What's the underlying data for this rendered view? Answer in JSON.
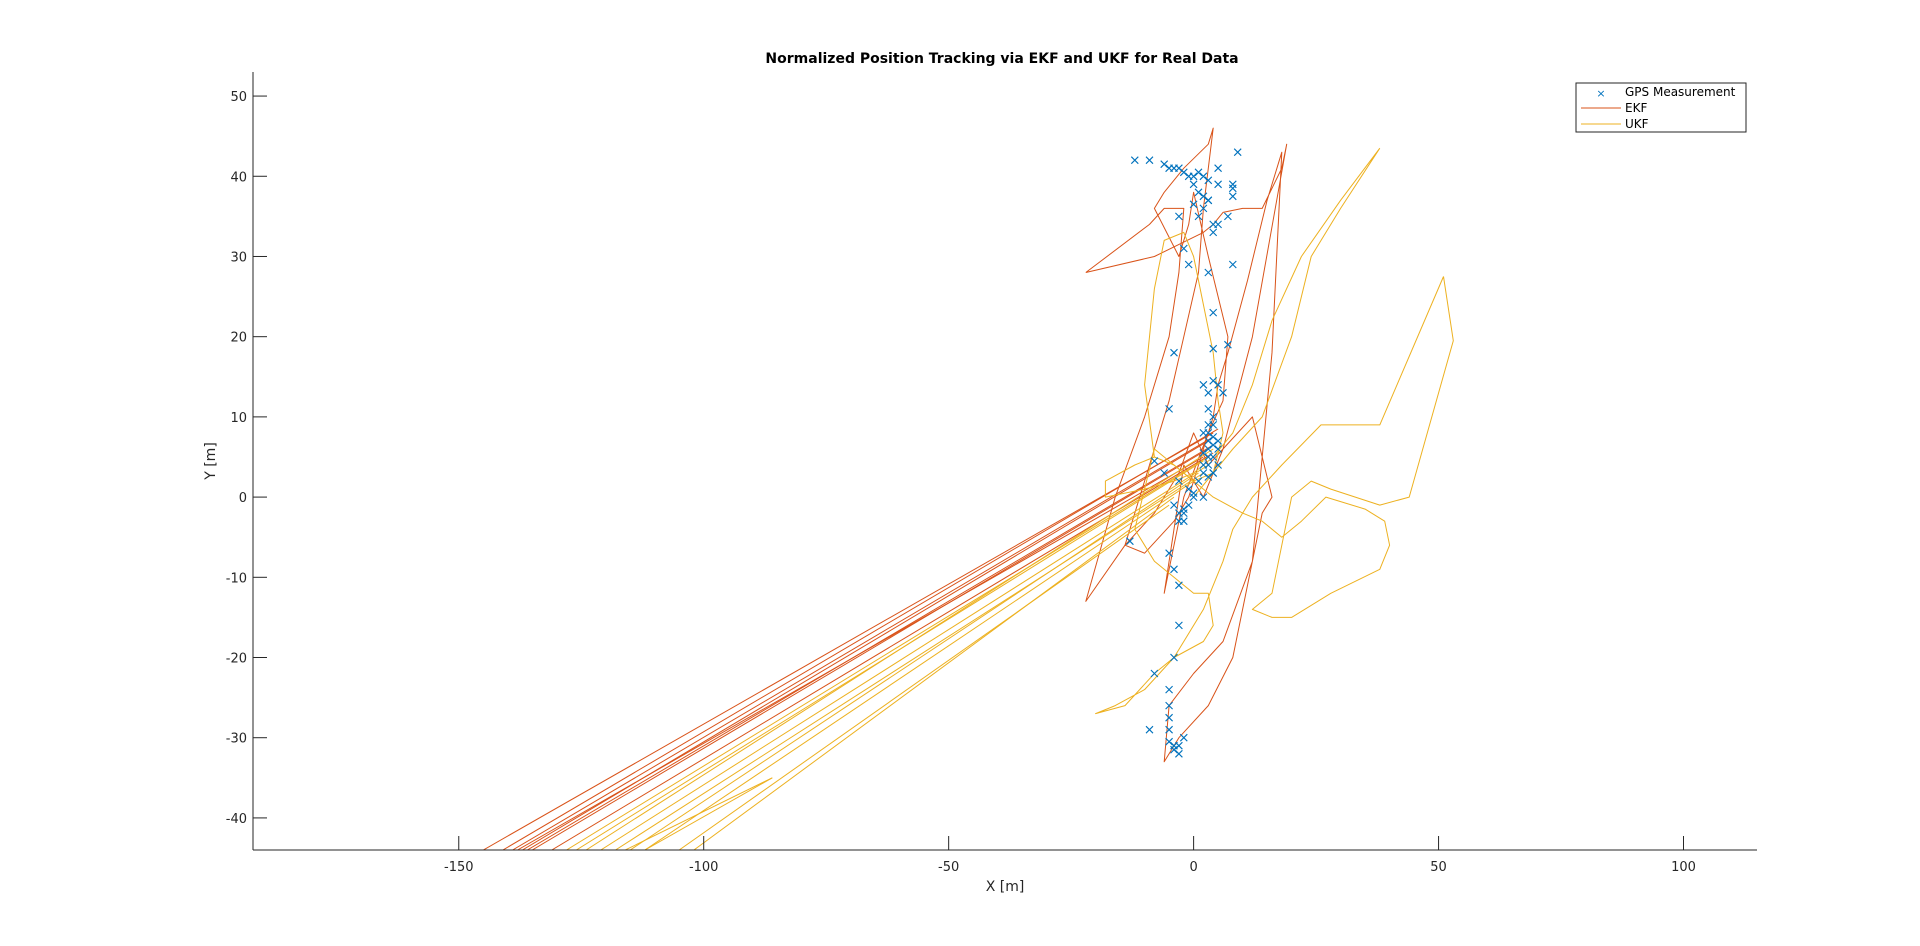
{
  "chart_data": {
    "type": "line",
    "title": "Normalized Position Tracking via EKF and UKF for Real Data",
    "xlabel": "X [m]",
    "ylabel": "Y [m]",
    "xlim": [
      -192,
      115
    ],
    "ylim": [
      -44,
      53
    ],
    "xticks": [
      -150,
      -100,
      -50,
      0,
      50,
      100
    ],
    "yticks": [
      -40,
      -30,
      -20,
      -10,
      0,
      10,
      20,
      30,
      40,
      50
    ],
    "grid": false,
    "legend_position": "top-right",
    "colors": {
      "gps": "#0072BD",
      "ekf": "#D95319",
      "ukf": "#EDB120"
    },
    "series": [
      {
        "name": "GPS Measurement",
        "marker": "x",
        "x": [
          -12,
          -9,
          -6,
          -5,
          -4,
          -3,
          -2,
          -1,
          0,
          1,
          2,
          3,
          5,
          8,
          9,
          0,
          1,
          2,
          3,
          5,
          8,
          0,
          1,
          2,
          3,
          4,
          5,
          8,
          -3,
          7,
          4,
          -2,
          -1,
          8,
          3,
          4,
          -4,
          4,
          7,
          2,
          4,
          5,
          3,
          3,
          4,
          -5,
          6,
          3,
          4,
          2,
          3,
          4,
          5,
          3,
          4,
          5,
          3,
          2,
          4,
          3,
          4,
          2,
          3,
          1,
          4,
          2,
          5,
          3,
          -8,
          -6,
          -3,
          -1,
          0,
          2,
          -4,
          -3,
          -2,
          -1,
          0,
          -2,
          -3,
          -13,
          -2,
          -5,
          -4,
          -3,
          -3,
          -4,
          -8,
          -5,
          -5,
          -5,
          -5,
          -9,
          -5,
          -4,
          -4,
          -3,
          -3,
          -2
        ],
        "y": [
          42,
          42,
          41.5,
          41,
          41,
          41,
          40.5,
          40,
          40,
          40.5,
          40,
          39.5,
          41,
          39,
          43,
          39,
          38,
          37.5,
          37,
          39,
          37.5,
          36.5,
          35,
          36,
          37,
          34,
          34,
          38.5,
          35,
          35,
          33,
          31,
          29,
          29,
          28,
          23,
          18,
          18.5,
          19,
          14,
          14.5,
          14,
          13,
          11,
          10,
          11,
          13,
          9,
          9,
          8,
          8,
          7.5,
          7,
          7,
          6.5,
          6,
          6,
          5.5,
          5,
          4,
          3,
          3,
          2.5,
          2,
          3,
          4,
          4,
          5,
          4.5,
          3,
          2,
          1,
          0.5,
          0,
          -1,
          -2,
          -1.5,
          -1,
          0,
          -3,
          -3,
          -5.5,
          -2,
          -7,
          -9,
          -11,
          -16,
          -20,
          -22,
          -24,
          -26,
          -27.5,
          -29,
          -29,
          -30.5,
          -31,
          -31.5,
          -32,
          -31,
          -30
        ]
      },
      {
        "name": "EKF",
        "segments": [
          [
            [
              -22,
              28
            ],
            [
              -8,
              30
            ],
            [
              2,
              33
            ],
            [
              4,
              34
            ],
            [
              6,
              35.5
            ],
            [
              10,
              36
            ],
            [
              14,
              36
            ],
            [
              18,
              41
            ],
            [
              19,
              44
            ],
            [
              12,
              20
            ],
            [
              6,
              6
            ],
            [
              3,
              4
            ],
            [
              0,
              8
            ],
            [
              -3,
              3
            ],
            [
              -8,
              -2
            ],
            [
              -14,
              -6
            ],
            [
              -10,
              -7
            ],
            [
              -4,
              -3
            ],
            [
              -1,
              0
            ],
            [
              2,
              6
            ],
            [
              4,
              10
            ],
            [
              5,
              14
            ],
            [
              7,
              18
            ],
            [
              11,
              27
            ],
            [
              15,
              37
            ],
            [
              18,
              43
            ],
            [
              16,
              18
            ],
            [
              12,
              -8
            ],
            [
              6,
              -18
            ],
            [
              0,
              -22
            ],
            [
              -5,
              -26
            ],
            [
              -6,
              -33
            ],
            [
              -3,
              -30
            ],
            [
              3,
              -26
            ],
            [
              8,
              -20
            ],
            [
              14,
              -2
            ],
            [
              16,
              0
            ],
            [
              12,
              10
            ],
            [
              6,
              6
            ],
            [
              2,
              0
            ],
            [
              -2,
              4
            ],
            [
              -6,
              -12
            ],
            [
              -2,
              0
            ],
            [
              3,
              8
            ],
            [
              6,
              12
            ],
            [
              7,
              20
            ],
            [
              3,
              30
            ],
            [
              0,
              38
            ],
            [
              -1,
              34
            ],
            [
              -3,
              30
            ],
            [
              -8,
              36
            ],
            [
              -6,
              38
            ],
            [
              -2,
              41
            ],
            [
              3,
              44
            ],
            [
              4,
              46
            ],
            [
              2,
              36
            ],
            [
              1,
              28
            ],
            [
              -2,
              20
            ],
            [
              -5,
              12
            ],
            [
              -9,
              4
            ],
            [
              -14,
              -6
            ],
            [
              -22,
              -13
            ],
            [
              -16,
              0
            ],
            [
              -10,
              10
            ],
            [
              -5,
              20
            ],
            [
              -3,
              28
            ],
            [
              -2,
              36
            ],
            [
              -6,
              36
            ],
            [
              -9,
              34
            ],
            [
              -22,
              28
            ]
          ],
          [
            [
              4,
              8
            ],
            [
              -145,
              -44
            ]
          ],
          [
            [
              5,
              8.5
            ],
            [
              -141,
              -44
            ]
          ],
          [
            [
              4,
              7.5
            ],
            [
              -139,
              -44
            ]
          ],
          [
            [
              3,
              7
            ],
            [
              -137,
              -44
            ]
          ],
          [
            [
              4,
              6.5
            ],
            [
              -136,
              -44
            ]
          ],
          [
            [
              3,
              6
            ],
            [
              -135,
              -44
            ]
          ],
          [
            [
              4,
              5.5
            ],
            [
              -131,
              -44
            ]
          ],
          [
            [
              2,
              5
            ],
            [
              -138,
              -44
            ]
          ]
        ]
      },
      {
        "name": "UKF",
        "segments": [
          [
            [
              38,
              43.5
            ],
            [
              30,
              37
            ],
            [
              22,
              30
            ],
            [
              16,
              22
            ],
            [
              12,
              14
            ],
            [
              8,
              8
            ],
            [
              4,
              5
            ],
            [
              0,
              3
            ],
            [
              -4,
              2
            ],
            [
              -10,
              1
            ],
            [
              -18,
              0
            ],
            [
              -18,
              2
            ],
            [
              -12,
              4
            ],
            [
              -8,
              5
            ],
            [
              -4,
              4
            ],
            [
              0,
              2
            ],
            [
              4,
              3
            ],
            [
              8,
              6
            ],
            [
              14,
              10
            ],
            [
              20,
              20
            ],
            [
              24,
              30
            ],
            [
              30,
              36
            ],
            [
              38,
              43.5
            ]
          ],
          [
            [
              51,
              27.5
            ],
            [
              53,
              19.5
            ],
            [
              44,
              0
            ],
            [
              38,
              -1
            ],
            [
              28,
              1
            ],
            [
              24,
              2
            ],
            [
              20,
              0
            ],
            [
              16,
              -12
            ],
            [
              12,
              -14
            ],
            [
              16,
              -15
            ],
            [
              20,
              -15
            ],
            [
              28,
              -12
            ],
            [
              38,
              -9
            ],
            [
              40,
              -6
            ],
            [
              39,
              -3
            ],
            [
              35,
              -1.5
            ],
            [
              27,
              0
            ],
            [
              22,
              -3
            ],
            [
              18,
              -5
            ],
            [
              14,
              -3
            ],
            [
              10,
              -2
            ],
            [
              4,
              0
            ],
            [
              0,
              2
            ],
            [
              -4,
              4
            ],
            [
              -8,
              6
            ],
            [
              -12,
              -4
            ],
            [
              -8,
              -8
            ],
            [
              -4,
              -10
            ],
            [
              0,
              -12
            ],
            [
              3,
              -12
            ],
            [
              4,
              -16
            ],
            [
              2,
              -18
            ],
            [
              -4,
              -20
            ],
            [
              -8,
              -22
            ],
            [
              -14,
              -26
            ],
            [
              -20,
              -27
            ],
            [
              -16,
              -26
            ],
            [
              -10,
              -24
            ],
            [
              -4,
              -20
            ],
            [
              2,
              -14
            ],
            [
              6,
              -8
            ],
            [
              8,
              -4
            ],
            [
              12,
              0
            ],
            [
              18,
              4
            ],
            [
              26,
              9
            ],
            [
              38,
              9
            ],
            [
              51,
              27.5
            ]
          ],
          [
            [
              -8,
              5
            ],
            [
              -10,
              14
            ],
            [
              -8,
              26
            ],
            [
              -6,
              32
            ],
            [
              -2,
              33
            ],
            [
              0,
              30
            ],
            [
              2,
              24
            ],
            [
              4,
              18
            ],
            [
              5,
              12
            ],
            [
              6,
              8
            ],
            [
              4,
              3
            ],
            [
              0,
              0
            ]
          ],
          [
            [
              4,
              6
            ],
            [
              -124,
              -44
            ]
          ],
          [
            [
              3,
              5
            ],
            [
              -128,
              -44
            ]
          ],
          [
            [
              2,
              4.5
            ],
            [
              -126,
              -44
            ]
          ],
          [
            [
              3,
              4
            ],
            [
              -121,
              -44
            ]
          ],
          [
            [
              2,
              3
            ],
            [
              -118,
              -44
            ]
          ],
          [
            [
              1,
              3
            ],
            [
              -115,
              -44
            ]
          ],
          [
            [
              0,
              2
            ],
            [
              -112,
              -44
            ]
          ],
          [
            [
              -4,
              0
            ],
            [
              -102,
              -44
            ]
          ],
          [
            [
              -5,
              -1
            ],
            [
              -105,
              -44
            ]
          ],
          [
            [
              -86,
              -35
            ],
            [
              -112,
              -44
            ]
          ],
          [
            [
              -86,
              -35
            ],
            [
              -116,
              -44
            ]
          ]
        ]
      }
    ]
  }
}
